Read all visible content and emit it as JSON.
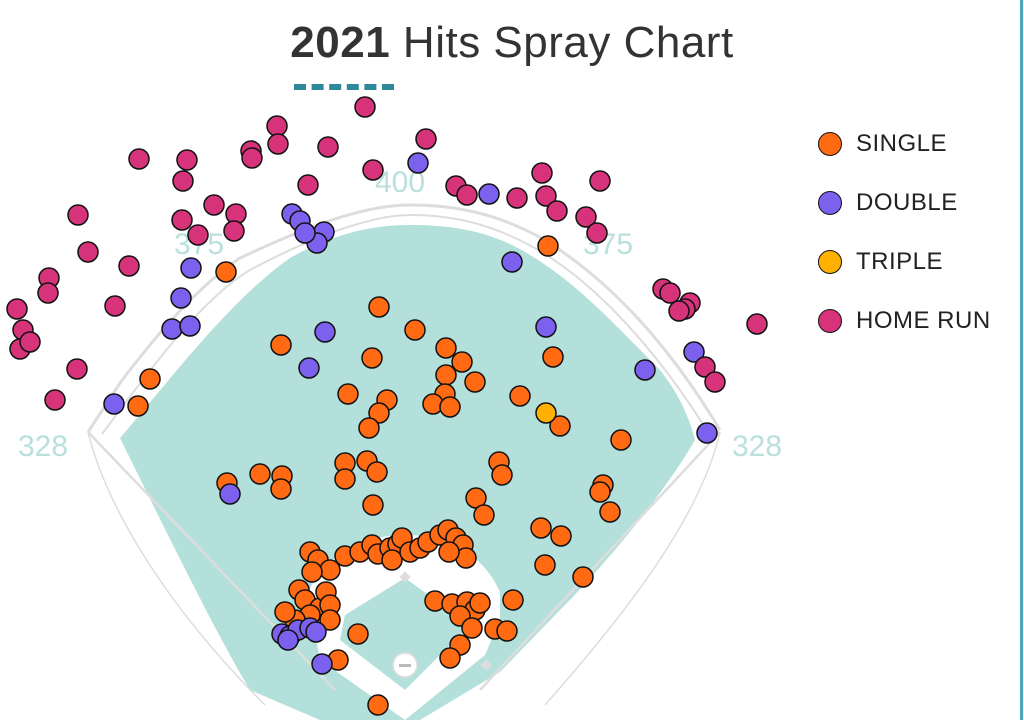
{
  "title": {
    "year": "2021",
    "rest": "Hits Spray Chart"
  },
  "distances": {
    "left_line": "328",
    "left_center": "375",
    "center": "400",
    "right_center": "375",
    "right_line": "328"
  },
  "legend": [
    {
      "key": "single",
      "label": "SINGLE",
      "color": "#ff6a13"
    },
    {
      "key": "double",
      "label": "DOUBLE",
      "color": "#7b61ee"
    },
    {
      "key": "triple",
      "label": "TRIPLE",
      "color": "#ffb000"
    },
    {
      "key": "home_run",
      "label": "HOME RUN",
      "color": "#d6337a"
    }
  ],
  "colors": {
    "grass": "#b4e0db",
    "outline": "#dddddd",
    "distance_text": "#b9e0dc",
    "accent": "#2e8a9a"
  },
  "chart_data": {
    "type": "scatter",
    "title": "2021 Hits Spray Chart",
    "series": [
      {
        "name": "SINGLE",
        "points": [
          [
            379,
            307
          ],
          [
            415,
            330
          ],
          [
            281,
            345
          ],
          [
            372,
            358
          ],
          [
            446,
            348
          ],
          [
            462,
            362
          ],
          [
            446,
            375
          ],
          [
            475,
            382
          ],
          [
            445,
            394
          ],
          [
            433,
            404
          ],
          [
            450,
            407
          ],
          [
            387,
            400
          ],
          [
            379,
            413
          ],
          [
            369,
            428
          ],
          [
            348,
            394
          ],
          [
            520,
            396
          ],
          [
            560,
            426
          ],
          [
            621,
            440
          ],
          [
            553,
            357
          ],
          [
            548,
            246
          ],
          [
            226,
            272
          ],
          [
            150,
            379
          ],
          [
            138,
            406
          ],
          [
            227,
            483
          ],
          [
            260,
            474
          ],
          [
            282,
            476
          ],
          [
            281,
            489
          ],
          [
            345,
            463
          ],
          [
            367,
            461
          ],
          [
            377,
            472
          ],
          [
            345,
            479
          ],
          [
            373,
            505
          ],
          [
            499,
            462
          ],
          [
            502,
            475
          ],
          [
            476,
            498
          ],
          [
            484,
            515
          ],
          [
            603,
            485
          ],
          [
            600,
            492
          ],
          [
            610,
            512
          ],
          [
            541,
            528
          ],
          [
            561,
            536
          ],
          [
            545,
            565
          ],
          [
            583,
            577
          ],
          [
            310,
            552
          ],
          [
            318,
            560
          ],
          [
            330,
            570
          ],
          [
            312,
            572
          ],
          [
            345,
            556
          ],
          [
            360,
            552
          ],
          [
            372,
            545
          ],
          [
            378,
            554
          ],
          [
            390,
            548
          ],
          [
            398,
            544
          ],
          [
            402,
            538
          ],
          [
            392,
            560
          ],
          [
            410,
            552
          ],
          [
            420,
            548
          ],
          [
            428,
            542
          ],
          [
            440,
            535
          ],
          [
            448,
            530
          ],
          [
            456,
            538
          ],
          [
            463,
            545
          ],
          [
            466,
            558
          ],
          [
            449,
            552
          ],
          [
            299,
            590
          ],
          [
            305,
            600
          ],
          [
            320,
            608
          ],
          [
            326,
            592
          ],
          [
            330,
            605
          ],
          [
            310,
            615
          ],
          [
            295,
            620
          ],
          [
            285,
            612
          ],
          [
            330,
            620
          ],
          [
            435,
            601
          ],
          [
            452,
            604
          ],
          [
            467,
            602
          ],
          [
            475,
            610
          ],
          [
            480,
            603
          ],
          [
            460,
            616
          ],
          [
            472,
            628
          ],
          [
            495,
            629
          ],
          [
            507,
            631
          ],
          [
            513,
            600
          ],
          [
            460,
            645
          ],
          [
            450,
            658
          ],
          [
            358,
            634
          ],
          [
            338,
            660
          ],
          [
            378,
            705
          ]
        ]
      },
      {
        "name": "DOUBLE",
        "points": [
          [
            418,
            163
          ],
          [
            489,
            194
          ],
          [
            292,
            214
          ],
          [
            300,
            221
          ],
          [
            324,
            232
          ],
          [
            317,
            243
          ],
          [
            305,
            233
          ],
          [
            191,
            268
          ],
          [
            181,
            298
          ],
          [
            172,
            329
          ],
          [
            190,
            326
          ],
          [
            325,
            332
          ],
          [
            309,
            368
          ],
          [
            546,
            327
          ],
          [
            512,
            262
          ],
          [
            645,
            370
          ],
          [
            694,
            352
          ],
          [
            707,
            433
          ],
          [
            114,
            404
          ],
          [
            230,
            494
          ],
          [
            282,
            634
          ],
          [
            290,
            636
          ],
          [
            298,
            630
          ],
          [
            310,
            628
          ],
          [
            316,
            632
          ],
          [
            288,
            640
          ],
          [
            322,
            664
          ]
        ]
      },
      {
        "name": "TRIPLE",
        "points": [
          [
            546,
            413
          ]
        ]
      },
      {
        "name": "HOME RUN",
        "points": [
          [
            365,
            107
          ],
          [
            277,
            126
          ],
          [
            278,
            144
          ],
          [
            251,
            151
          ],
          [
            252,
            158
          ],
          [
            328,
            147
          ],
          [
            426,
            139
          ],
          [
            373,
            170
          ],
          [
            308,
            185
          ],
          [
            187,
            160
          ],
          [
            139,
            159
          ],
          [
            183,
            181
          ],
          [
            214,
            205
          ],
          [
            236,
            214
          ],
          [
            234,
            231
          ],
          [
            182,
            220
          ],
          [
            198,
            235
          ],
          [
            78,
            215
          ],
          [
            88,
            252
          ],
          [
            129,
            266
          ],
          [
            49,
            278
          ],
          [
            48,
            293
          ],
          [
            17,
            309
          ],
          [
            115,
            306
          ],
          [
            23,
            330
          ],
          [
            20,
            349
          ],
          [
            30,
            342
          ],
          [
            77,
            369
          ],
          [
            55,
            400
          ],
          [
            456,
            186
          ],
          [
            467,
            195
          ],
          [
            517,
            198
          ],
          [
            542,
            173
          ],
          [
            546,
            196
          ],
          [
            557,
            211
          ],
          [
            600,
            181
          ],
          [
            586,
            217
          ],
          [
            597,
            233
          ],
          [
            663,
            289
          ],
          [
            670,
            293
          ],
          [
            690,
            303
          ],
          [
            685,
            309
          ],
          [
            679,
            311
          ],
          [
            757,
            324
          ],
          [
            705,
            367
          ],
          [
            715,
            382
          ]
        ]
      }
    ]
  }
}
